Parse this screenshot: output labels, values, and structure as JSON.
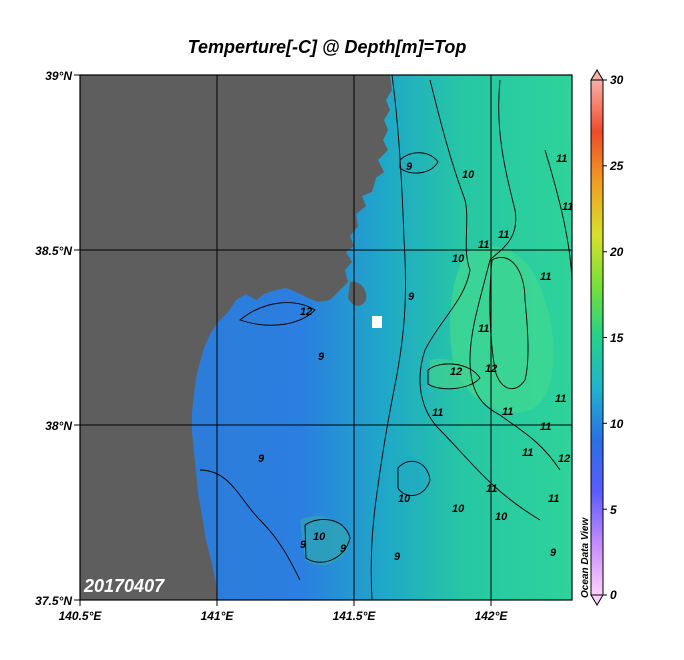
{
  "title": "Temperture[-C] @ Depth[m]=Top",
  "date_stamp": "20170407",
  "watermark": "Ocean Data View",
  "axes": {
    "x_ticks": [
      "140.5°E",
      "141°E",
      "141.5°E",
      "142°E"
    ],
    "y_ticks": [
      "39°N",
      "38.5°N",
      "38°N",
      "37.5°N"
    ]
  },
  "colorbar": {
    "range": [
      0,
      30
    ],
    "ticks": [
      "30",
      "25",
      "20",
      "15",
      "10",
      "5",
      "0"
    ]
  },
  "contour_labels": [
    "9",
    "10",
    "11",
    "12",
    "10",
    "11",
    "9",
    "11",
    "11",
    "11",
    "11",
    "12",
    "12",
    "11",
    "11",
    "11",
    "11",
    "12",
    "9",
    "10",
    "10",
    "11",
    "10",
    "9",
    "10",
    "9",
    "9",
    "11",
    "11",
    "9",
    "9"
  ],
  "colors": {
    "land": "#5e5e5e",
    "coastal_water": "#2f7fd8",
    "offshore_water": "#2fd39a",
    "contour": "#000000"
  },
  "chart_data": {
    "type": "heatmap",
    "variable": "Temperture[-C]",
    "depth": "Top",
    "date": "20170407",
    "lon_range": [
      140.5,
      142.3
    ],
    "lat_range": [
      37.5,
      39.0
    ],
    "value_range": [
      0,
      30
    ],
    "contour_levels": [
      9,
      10,
      11,
      12
    ]
  }
}
